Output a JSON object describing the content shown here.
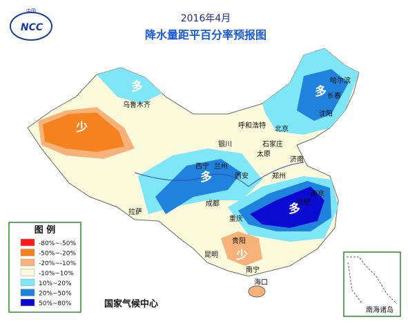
{
  "header": {
    "logo_top": "中国",
    "logo": "NCC",
    "title": "2016年4月",
    "subtitle": "降水量距平百分率预报图"
  },
  "legend": {
    "title": "图 例",
    "items": [
      {
        "label": "-80%~-50%",
        "color": "#ff1a1a"
      },
      {
        "label": "-50%~-20%",
        "color": "#f5821f"
      },
      {
        "label": "-20%~-10%",
        "color": "#f7b27a"
      },
      {
        "label": "-10%~10%",
        "color": "#fbfbdc"
      },
      {
        "label": "10%~20%",
        "color": "#7fe6f7"
      },
      {
        "label": "20%~50%",
        "color": "#1f82dc"
      },
      {
        "label": "50%~80%",
        "color": "#0a0ad2"
      }
    ]
  },
  "regions": [
    "多",
    "少",
    "多",
    "多",
    "多",
    "少"
  ],
  "cities": [
    "乌鲁木齐",
    "哈尔滨",
    "长春",
    "沈阳",
    "呼和浩特",
    "北京",
    "银川",
    "石家庄",
    "太原",
    "济南",
    "西宁",
    "兰州",
    "西安",
    "郑州",
    "南京",
    "合肥",
    "成都",
    "拉萨",
    "重庆",
    "贵阳",
    "昆明",
    "南宁",
    "海口"
  ],
  "footer": "国家气候中心",
  "inset": "南海诸岛"
}
